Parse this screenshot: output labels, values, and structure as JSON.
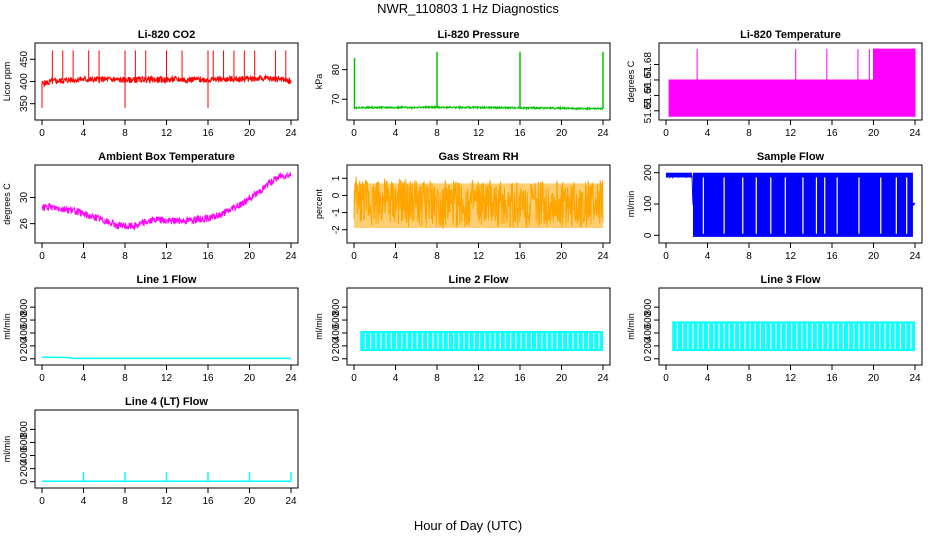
{
  "figure": {
    "title": "NWR_110803  1 Hz Diagnostics",
    "xlabel": "Hour of Day (UTC)"
  },
  "chart_data": [
    {
      "type": "line",
      "title": "Li-820 CO2",
      "ylabel": "Licor ppm",
      "color": "#ff0000",
      "xlim": [
        0,
        24
      ],
      "ylim": [
        320,
        480
      ],
      "xticks": [
        "0",
        "4",
        "8",
        "12",
        "16",
        "20",
        "24"
      ],
      "yticks": [
        "350",
        "400",
        "450"
      ],
      "ytick_values": [
        350,
        400,
        450
      ],
      "series": [
        {
          "x": [
            0,
            1,
            2,
            3,
            4,
            5,
            6,
            7,
            8,
            9,
            10,
            11,
            12,
            13,
            14,
            15,
            16,
            17,
            18,
            19,
            20,
            21,
            22,
            23,
            24
          ],
          "y": [
            395,
            400,
            402,
            404,
            405,
            404,
            405,
            404,
            403,
            404,
            405,
            404,
            404,
            405,
            404,
            405,
            404,
            405,
            405,
            406,
            406,
            407,
            406,
            406,
            400
          ],
          "band": 14
        }
      ]
    },
    {
      "type": "line",
      "title": "Li-820 Pressure",
      "ylabel": "kPa",
      "color": "#00c000",
      "xlim": [
        0,
        24
      ],
      "ylim": [
        64,
        88
      ],
      "xticks": [
        "0",
        "4",
        "8",
        "12",
        "16",
        "20",
        "24"
      ],
      "yticks": [
        "70",
        "80"
      ],
      "ytick_values": [
        70,
        80
      ],
      "series": [
        {
          "x": [
            0,
            0.3,
            4,
            8,
            12,
            16,
            20,
            23.5,
            24
          ],
          "y": [
            67,
            67.2,
            67.2,
            67.3,
            67.2,
            67.1,
            67.0,
            66.8,
            66.8
          ],
          "band": 0.6
        }
      ]
    },
    {
      "type": "area",
      "title": "Li-820 Temperature",
      "ylabel": "degrees C",
      "color": "#ff00ff",
      "xlim": [
        0,
        24
      ],
      "ylim": [
        51.646,
        51.692
      ],
      "xticks": [
        "0",
        "4",
        "8",
        "12",
        "16",
        "20",
        "24"
      ],
      "yticks": [
        "51.65",
        "51.66",
        "51.67",
        "51.68"
      ],
      "ytick_values": [
        51.65,
        51.66,
        51.67,
        51.68
      ],
      "series": [
        {
          "x": [
            0,
            3,
            20,
            24
          ],
          "y": [
            51.67,
            51.67,
            51.69,
            51.69
          ]
        }
      ]
    },
    {
      "type": "line",
      "title": "Ambient Box Temperature",
      "ylabel": "degrees C",
      "color": "#ff00ff",
      "xlim": [
        0,
        24
      ],
      "ylim": [
        23.5,
        34.5
      ],
      "xticks": [
        "0",
        "4",
        "8",
        "12",
        "16",
        "20",
        "24"
      ],
      "yticks": [
        "26",
        "30"
      ],
      "ytick_values": [
        26,
        30
      ],
      "series": [
        {
          "x": [
            0,
            1,
            2,
            3,
            4,
            5,
            6,
            7,
            8,
            9,
            10,
            11,
            12,
            13,
            14,
            15,
            16,
            17,
            18,
            19,
            20,
            21,
            22,
            23,
            24
          ],
          "y": [
            28.5,
            28.5,
            28.3,
            28.0,
            27.5,
            27.0,
            26.5,
            25.8,
            25.6,
            25.7,
            26.3,
            26.6,
            26.4,
            26.5,
            26.5,
            26.7,
            26.8,
            27.2,
            28.0,
            28.8,
            29.8,
            31.0,
            32.3,
            33.3,
            33.5
          ],
          "band": 1.1
        }
      ]
    },
    {
      "type": "line",
      "title": "Gas Stream RH",
      "ylabel": "percent",
      "color": "#ffa500",
      "xlim": [
        0,
        24
      ],
      "ylim": [
        -2.6,
        1.6
      ],
      "xticks": [
        "0",
        "4",
        "8",
        "12",
        "16",
        "20",
        "24"
      ],
      "yticks": [
        "-2",
        "-1",
        "0",
        "1"
      ],
      "ytick_values": [
        -2,
        -1,
        0,
        1
      ],
      "series": [
        {
          "x": [
            0,
            4,
            8,
            12,
            16,
            20,
            24
          ],
          "y": [
            -0.3,
            -0.4,
            -0.5,
            -0.5,
            -0.5,
            -0.5,
            -0.5
          ],
          "band": 2.8
        }
      ]
    },
    {
      "type": "line",
      "title": "Sample Flow",
      "ylabel": "ml/min",
      "color": "#0000ff",
      "xlim": [
        0,
        24
      ],
      "ylim": [
        -15,
        215
      ],
      "xticks": [
        "0",
        "4",
        "8",
        "12",
        "16",
        "20",
        "24"
      ],
      "yticks": [
        "0",
        "100",
        "200"
      ],
      "ytick_values": [
        0,
        100,
        200
      ],
      "series": [
        {
          "x": [
            0,
            2.5,
            2.6,
            24
          ],
          "y": [
            190,
            190,
            100,
            100
          ],
          "band": 10
        }
      ]
    },
    {
      "type": "line",
      "title": "Line 1 Flow",
      "ylabel": "ml/min",
      "color": "#00ffff",
      "xlim": [
        0,
        24
      ],
      "ylim": [
        -50,
        1050
      ],
      "xticks": [
        "0",
        "4",
        "8",
        "12",
        "16",
        "20",
        "24"
      ],
      "yticks": [
        "0",
        "200",
        "400",
        "600",
        "800"
      ],
      "ytick_values": [
        0,
        200,
        400,
        600,
        800
      ],
      "series": [
        {
          "x": [
            0,
            2.5,
            3,
            24
          ],
          "y": [
            25,
            20,
            5,
            5
          ],
          "band": 0
        }
      ]
    },
    {
      "type": "line",
      "title": "Line 2 Flow",
      "ylabel": "ml/min",
      "color": "#00ffff",
      "xlim": [
        0,
        24
      ],
      "ylim": [
        -50,
        1050
      ],
      "xticks": [
        "0",
        "4",
        "8",
        "12",
        "16",
        "20",
        "24"
      ],
      "yticks": [
        "0",
        "200",
        "400",
        "600",
        "800"
      ],
      "ytick_values": [
        0,
        200,
        400,
        600,
        800
      ],
      "series": [
        {
          "x": [
            0,
            24
          ],
          "y": [
            120,
            120
          ],
          "high": 430
        }
      ]
    },
    {
      "type": "line",
      "title": "Line 3 Flow",
      "ylabel": "ml/min",
      "color": "#00ffff",
      "xlim": [
        0,
        24
      ],
      "ylim": [
        -50,
        1050
      ],
      "xticks": [
        "0",
        "4",
        "8",
        "12",
        "16",
        "20",
        "24"
      ],
      "yticks": [
        "0",
        "200",
        "400",
        "600",
        "800"
      ],
      "ytick_values": [
        0,
        200,
        400,
        600,
        800
      ],
      "series": [
        {
          "x": [
            0,
            24
          ],
          "y": [
            120,
            120
          ],
          "high": 580
        }
      ]
    },
    {
      "type": "line",
      "title": "Line 4 (LT) Flow",
      "ylabel": "ml/min",
      "color": "#00ffff",
      "xlim": [
        0,
        24
      ],
      "ylim": [
        -50,
        1050
      ],
      "xticks": [
        "0",
        "4",
        "8",
        "12",
        "16",
        "20",
        "24"
      ],
      "yticks": [
        "0",
        "200",
        "400",
        "600",
        "800"
      ],
      "ytick_values": [
        0,
        200,
        400,
        600,
        800
      ],
      "series": [
        {
          "x": [
            0,
            24
          ],
          "y": [
            8,
            8
          ],
          "band": 0
        }
      ]
    }
  ]
}
